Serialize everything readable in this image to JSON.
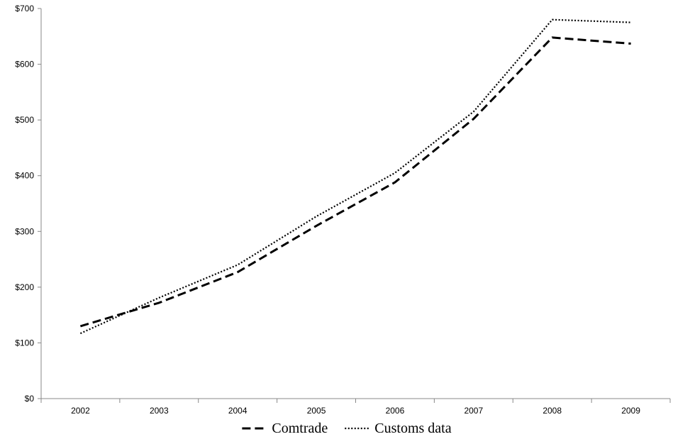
{
  "chart_data": {
    "type": "line",
    "title": "",
    "xlabel": "",
    "ylabel": "",
    "categories": [
      "2002",
      "2003",
      "2004",
      "2005",
      "2006",
      "2007",
      "2008",
      "2009"
    ],
    "ylim": [
      0,
      700
    ],
    "yticks": [
      0,
      100,
      200,
      300,
      400,
      500,
      600,
      700
    ],
    "ytick_labels": [
      "$0",
      "$100",
      "$200",
      "$300",
      "$400",
      "$500",
      "$600",
      "$700"
    ],
    "grid": false,
    "legend_position": "bottom",
    "series": [
      {
        "name": "Comtrade",
        "line_style": "dashed",
        "color": "#000000",
        "values": [
          130,
          172,
          227,
          310,
          388,
          502,
          648,
          637
        ]
      },
      {
        "name": "Customs data",
        "line_style": "dotted",
        "color": "#000000",
        "values": [
          117,
          181,
          240,
          327,
          405,
          515,
          680,
          675
        ]
      }
    ]
  }
}
